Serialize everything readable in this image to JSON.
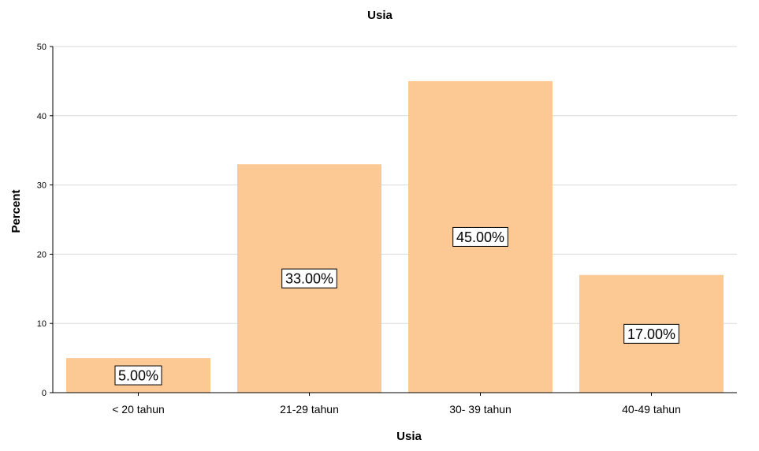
{
  "chart_data": {
    "type": "bar",
    "title": "Usia",
    "xlabel": "Usia",
    "ylabel": "Percent",
    "categories": [
      "< 20 tahun",
      "21-29 tahun",
      "30- 39 tahun",
      "40-49 tahun"
    ],
    "values": [
      5,
      33,
      45,
      17
    ],
    "data_labels": [
      "5.00%",
      "33.00%",
      "45.00%",
      "17.00%"
    ],
    "ylim": [
      0,
      50
    ],
    "yticks": [
      0,
      10,
      20,
      30,
      40,
      50
    ],
    "ytick_labels": [
      "0",
      "10",
      "20",
      "30",
      "40",
      "50"
    ],
    "grid": true,
    "colors": {
      "bar": "#fcc995",
      "grid": "#d9d9d9",
      "axis": "#000000",
      "background": "#ffffff"
    }
  }
}
